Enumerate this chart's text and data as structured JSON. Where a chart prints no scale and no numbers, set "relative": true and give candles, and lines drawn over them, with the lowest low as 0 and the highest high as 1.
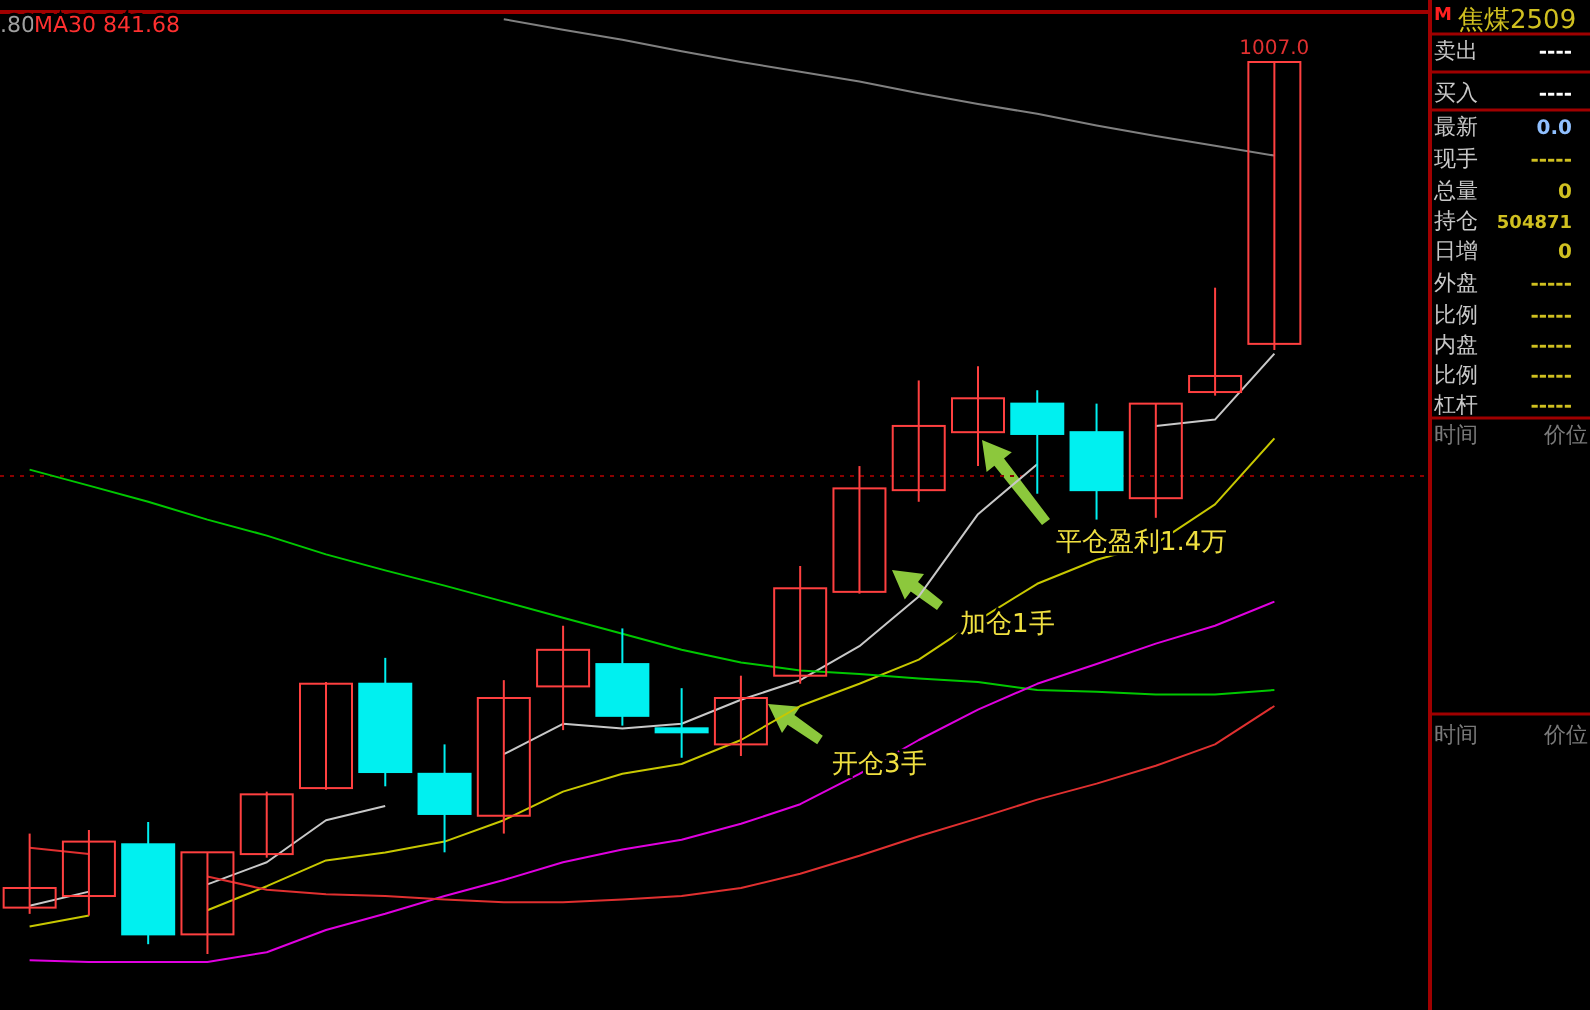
{
  "chart_data": [
    {
      "type": "candlestick",
      "relative": true,
      "categories": [
        null,
        null,
        null,
        null,
        null,
        null,
        null,
        null,
        null,
        null,
        null,
        null,
        null,
        null,
        null,
        null,
        null,
        null,
        null,
        null,
        null,
        null
      ],
      "ohlc": [
        [
          0.052,
          0.135,
          0.045,
          0.074
        ],
        [
          0.065,
          0.139,
          0.043,
          0.126
        ],
        [
          0.123,
          0.148,
          0.011,
          0.022
        ],
        [
          0.022,
          0.114,
          0,
          0.114
        ],
        [
          0.112,
          0.182,
          0.108,
          0.179
        ],
        [
          0.186,
          0.305,
          0.184,
          0.303
        ],
        [
          0.303,
          0.332,
          0.188,
          0.204
        ],
        [
          0.202,
          0.235,
          0.114,
          0.157
        ],
        [
          0.155,
          0.307,
          0.135,
          0.287
        ],
        [
          0.3,
          0.368,
          0.251,
          0.341
        ],
        [
          0.325,
          0.365,
          0.256,
          0.267
        ],
        [
          0.253,
          0.298,
          0.22,
          0.249
        ],
        [
          0.235,
          0.312,
          0.222,
          0.287
        ],
        [
          0.312,
          0.435,
          0.303,
          0.41
        ],
        [
          0.406,
          0.547,
          0.404,
          0.522
        ],
        [
          0.52,
          0.643,
          0.507,
          0.592
        ],
        [
          0.585,
          0.659,
          0.547,
          0.623
        ],
        [
          0.617,
          0.632,
          0.516,
          0.583
        ],
        [
          0.585,
          0.617,
          0.487,
          0.52
        ],
        [
          0.511,
          0.617,
          0.489,
          0.617
        ],
        [
          0.63,
          0.747,
          0.626,
          0.648
        ],
        [
          0.684,
          1,
          0.677,
          1
        ]
      ],
      "colors": [
        "#ff4040",
        "#ff4040",
        "#00f0f0",
        "#ff4040",
        "#ff4040",
        "#ff4040",
        "#00f0f0",
        "#00f0f0",
        "#ff4040",
        "#ff4040",
        "#00f0f0",
        "#00f0f0",
        "#ff4040",
        "#ff4040",
        "#ff4040",
        "#ff4040",
        "#ff4040",
        "#00f0f0",
        "#00f0f0",
        "#ff4040",
        "#ff4040",
        "#ff4040"
      ],
      "series": [
        {
          "type": "line",
          "color": "#c8c8c8",
          "values": [
            0.054,
            0.07,
            null,
            0.078,
            0.103,
            0.15,
            0.166,
            null,
            0.224,
            0.258,
            0.253,
            0.258,
            0.285,
            0.307,
            0.345,
            0.401,
            0.493,
            0.549,
            null,
            0.592,
            0.599,
            0.673
          ]
        },
        {
          "type": "line",
          "color": "#c8c800",
          "values": [
            0.031,
            0.043,
            null,
            0.049,
            0.076,
            0.105,
            0.114,
            0.126,
            0.15,
            0.182,
            0.202,
            0.213,
            0.24,
            0.278,
            0.303,
            0.33,
            0.374,
            0.415,
            0.442,
            0.46,
            0.504,
            0.578
          ]
        },
        {
          "type": "line",
          "color": "#00c800",
          "values": [
            0.543,
            0.525,
            0.507,
            0.487,
            0.469,
            0.448,
            0.43,
            0.413,
            0.395,
            0.377,
            0.359,
            0.341,
            0.327,
            0.318,
            0.314,
            0.309,
            0.305,
            0.296,
            0.294,
            0.291,
            0.291,
            0.296
          ]
        },
        {
          "type": "line",
          "color": "#e000e0",
          "values": [
            -0.007,
            -0.009,
            -0.009,
            -0.009,
            0.002,
            0.027,
            0.045,
            0.065,
            0.083,
            0.103,
            0.117,
            0.128,
            0.146,
            0.168,
            0.202,
            0.24,
            0.274,
            0.303,
            0.325,
            0.348,
            0.368,
            0.395
          ]
        },
        {
          "type": "line",
          "color": "#e03030",
          "values": [
            0.119,
            0.112,
            null,
            0.087,
            0.072,
            0.067,
            0.065,
            0.061,
            0.058,
            0.058,
            0.061,
            0.065,
            0.074,
            0.09,
            0.11,
            0.132,
            0.152,
            0.173,
            0.191,
            0.211,
            0.235,
            0.278
          ]
        },
        {
          "type": "line",
          "color": "#808080",
          "values": [
            null,
            null,
            null,
            null,
            null,
            null,
            null,
            null,
            1.048,
            1.036,
            1.025,
            1.012,
            1.0,
            0.989,
            0.978,
            0.965,
            0.953,
            0.942,
            0.929,
            0.917,
            0.906,
            0.895
          ]
        }
      ],
      "ref_lines": [
        {
          "axis": "y",
          "value": 0.536,
          "color": "#8b0000",
          "line_style": "dotted"
        }
      ],
      "annotations": [
        ".80",
        "MA30 841.68",
        "1007.0",
        "开仓3手",
        "加仓1手",
        "平仓盈利1.4万"
      ]
    },
    {
      "type": "other",
      "title": "焦煤2509",
      "annotations": [
        "M",
        "卖出",
        "----",
        "买入",
        "----",
        "最新",
        "0.0",
        "现手",
        "-----",
        "总量",
        "0",
        "持仓",
        "504871",
        "日增",
        "0",
        "外盘",
        "-----",
        "比例",
        "-----",
        "内盘",
        "-----",
        "比例",
        "-----",
        "杠杆",
        "-----",
        "时间",
        "价位",
        "时间",
        "价位"
      ]
    }
  ]
}
